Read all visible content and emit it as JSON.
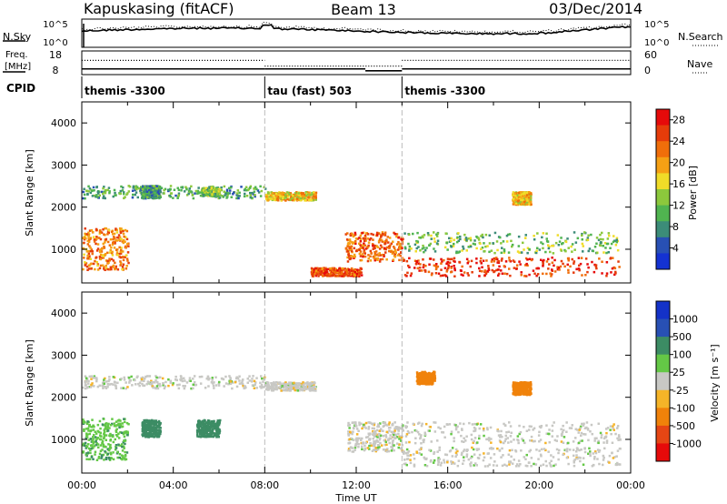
{
  "header": {
    "station": "Kapuskasing (fitACF)",
    "beam": "Beam 13",
    "date": "03/Dec/2014"
  },
  "colors": {
    "axis": "#000000",
    "scatter_dense": "#c8c8c4",
    "mode_divider": "#bbbbbb"
  },
  "chart_data": [
    {
      "type": "line",
      "title": "",
      "left_label": "N.Sky",
      "right_label": "N.Search",
      "left_ticks": [
        "10^5",
        "10^0"
      ],
      "right_ticks": [
        "10^5",
        "10^0"
      ],
      "series": [
        {
          "name": "N.Sky",
          "style": "solid"
        },
        {
          "name": "N.Search",
          "style": "dotted"
        }
      ],
      "x_range_hours": [
        0,
        24
      ]
    },
    {
      "type": "line",
      "left_label": [
        "Freq.",
        "[MHz]"
      ],
      "right_label": "Nave",
      "left_ticks": [
        "18",
        "8"
      ],
      "right_ticks": [
        "60",
        "0"
      ],
      "freq_segments": [
        {
          "x": [
            0,
            8
          ],
          "y": 10.4
        },
        {
          "x": [
            8,
            12.4
          ],
          "y": 10.4
        },
        {
          "x": [
            12.4,
            14
          ],
          "y": 9.6
        },
        {
          "x": [
            14,
            24
          ],
          "y": 10.4
        }
      ],
      "nave_dotted_segments": [
        {
          "x": [
            0,
            8
          ],
          "y": 14.0
        },
        {
          "x": [
            8,
            14
          ],
          "y": 11.6
        },
        {
          "x": [
            14,
            24
          ],
          "y": 14.0
        }
      ]
    },
    {
      "type": "table",
      "label": "CPID",
      "modes": [
        {
          "start_hours": 0,
          "name": "themis -3300"
        },
        {
          "start_hours": 8,
          "name": "tau (fast) 503"
        },
        {
          "start_hours": 14,
          "name": "themis -3300"
        }
      ]
    },
    {
      "type": "heatmap",
      "ylabel": "Slant Range [km]",
      "xlabel": "",
      "ylim": [
        200,
        4500
      ],
      "xlim_hours": [
        0,
        24
      ],
      "y_ticks": [
        1000,
        2000,
        3000,
        4000
      ],
      "colorbar": {
        "label": "Power [dB]",
        "ticks": [
          4,
          8,
          12,
          16,
          20,
          24,
          28
        ],
        "range": [
          0,
          30
        ],
        "colors": [
          "#1432d2",
          "#2850b4",
          "#3c8c78",
          "#50b450",
          "#8cc83c",
          "#f0dc28",
          "#f5a014",
          "#f06e0a",
          "#e63c0a",
          "#e60a0a"
        ]
      },
      "echo_regions": [
        {
          "x": [
            0.0,
            8.0
          ],
          "y": [
            2200,
            2500
          ],
          "level": 10
        },
        {
          "x": [
            0.0,
            2.0
          ],
          "y": [
            500,
            1500
          ],
          "level": 22
        },
        {
          "x": [
            2.6,
            3.4
          ],
          "y": [
            2200,
            2500
          ],
          "level": 9
        },
        {
          "x": [
            5.2,
            6.0
          ],
          "y": [
            2250,
            2450
          ],
          "level": 12
        },
        {
          "x": [
            8.0,
            10.2
          ],
          "y": [
            2150,
            2350
          ],
          "level": 18
        },
        {
          "x": [
            10.0,
            12.2
          ],
          "y": [
            350,
            550
          ],
          "level": 24
        },
        {
          "x": [
            11.5,
            14.0
          ],
          "y": [
            700,
            1400
          ],
          "level": 23
        },
        {
          "x": [
            14.0,
            23.5
          ],
          "y": [
            900,
            1400
          ],
          "level": 12
        },
        {
          "x": [
            14.0,
            23.5
          ],
          "y": [
            350,
            800
          ],
          "level": 26
        },
        {
          "x": [
            18.8,
            19.6
          ],
          "y": [
            2050,
            2350
          ],
          "level": 18
        }
      ]
    },
    {
      "type": "heatmap",
      "ylabel": "Slant Range [km]",
      "xlabel": "Time UT",
      "ylim": [
        200,
        4500
      ],
      "xlim_hours": [
        0,
        24
      ],
      "y_ticks": [
        1000,
        2000,
        3000,
        4000
      ],
      "x_tick_labels": [
        "00:00",
        "04:00",
        "08:00",
        "12:00",
        "16:00",
        "20:00",
        "00:00"
      ],
      "colorbar": {
        "label": "Velocity [m s⁻¹]",
        "ticks": [
          "1000",
          "500",
          "100",
          "25",
          "-25",
          "-100",
          "-500",
          "-1000"
        ],
        "colors": [
          "#1432c8",
          "#2850b4",
          "#3c8c64",
          "#64c846",
          "#c8c8c4",
          "#f5b428",
          "#f0820a",
          "#e64614",
          "#e60a0a"
        ]
      },
      "echo_regions": [
        {
          "x": [
            0.0,
            8.0
          ],
          "y": [
            2200,
            2500
          ],
          "velocity": 0
        },
        {
          "x": [
            0.0,
            2.0
          ],
          "y": [
            500,
            1500
          ],
          "velocity": 80
        },
        {
          "x": [
            2.6,
            3.4
          ],
          "y": [
            1050,
            1450
          ],
          "velocity": 200
        },
        {
          "x": [
            5.0,
            6.0
          ],
          "y": [
            1050,
            1450
          ],
          "velocity": 150
        },
        {
          "x": [
            8.0,
            10.2
          ],
          "y": [
            2150,
            2350
          ],
          "velocity": 0
        },
        {
          "x": [
            11.6,
            14.0
          ],
          "y": [
            700,
            1400
          ],
          "velocity": 0
        },
        {
          "x": [
            14.0,
            23.5
          ],
          "y": [
            900,
            1400
          ],
          "velocity": 0
        },
        {
          "x": [
            14.0,
            23.5
          ],
          "y": [
            350,
            800
          ],
          "velocity": 0
        },
        {
          "x": [
            14.6,
            15.4
          ],
          "y": [
            2300,
            2600
          ],
          "velocity": -300
        },
        {
          "x": [
            18.8,
            19.6
          ],
          "y": [
            2050,
            2350
          ],
          "velocity": -300
        }
      ]
    }
  ]
}
